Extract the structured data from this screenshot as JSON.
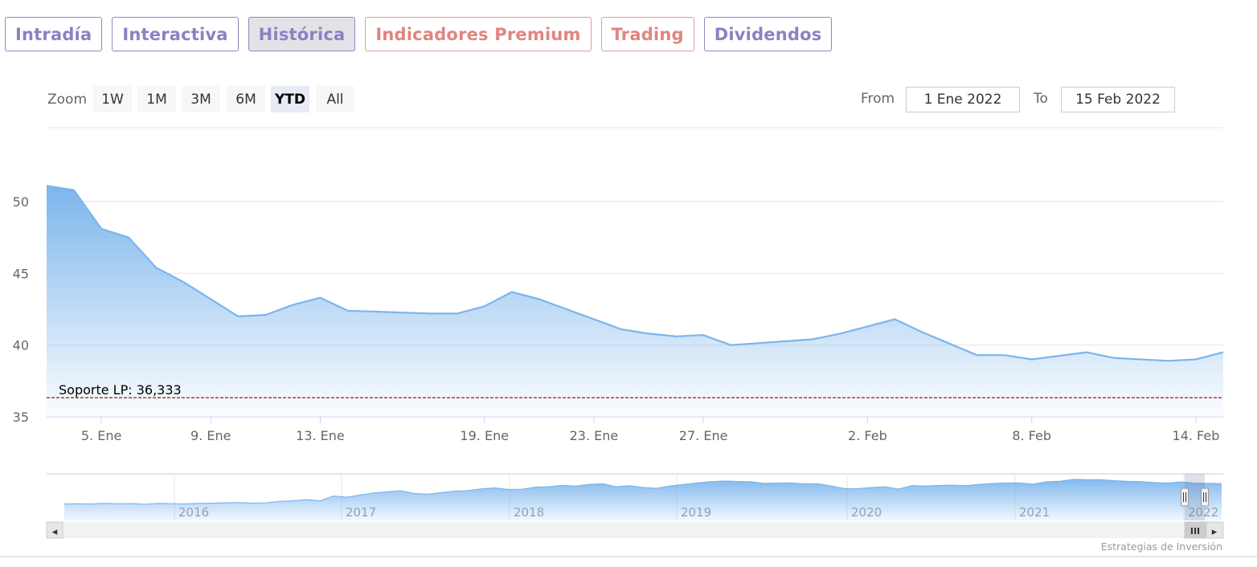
{
  "tabs": [
    {
      "label": "Intradía",
      "style": "purple",
      "active": false
    },
    {
      "label": "Interactiva",
      "style": "purple",
      "active": false
    },
    {
      "label": "Histórica",
      "style": "purple",
      "active": true
    },
    {
      "label": "Indicadores Premium",
      "style": "red",
      "active": false
    },
    {
      "label": "Trading",
      "style": "red",
      "active": false
    },
    {
      "label": "Dividendos",
      "style": "purple",
      "active": false
    }
  ],
  "toolbar": {
    "zoom_label": "Zoom",
    "zoom_buttons": [
      "1W",
      "1M",
      "3M",
      "6M",
      "YTD",
      "All"
    ],
    "zoom_selected": "YTD",
    "from_label": "From",
    "from_value": "1 Ene 2022",
    "to_label": "To",
    "to_value": "15 Feb 2022"
  },
  "colors": {
    "series_line": "#7cb5ec",
    "support_line": "#8b0000",
    "tab_purple": "#8a82c2",
    "tab_red": "#e0857f"
  },
  "chart_data": {
    "type": "area",
    "title": "",
    "xlabel": "",
    "ylabel": "",
    "ylim": [
      35,
      51.5
    ],
    "yticks": [
      35,
      40,
      45,
      50
    ],
    "x_tick_labels": [
      {
        "date": "2022-01-05",
        "label": "5. Ene"
      },
      {
        "date": "2022-01-09",
        "label": "9. Ene"
      },
      {
        "date": "2022-01-13",
        "label": "13. Ene"
      },
      {
        "date": "2022-01-19",
        "label": "19. Ene"
      },
      {
        "date": "2022-01-23",
        "label": "23. Ene"
      },
      {
        "date": "2022-01-27",
        "label": "27. Ene"
      },
      {
        "date": "2022-02-02",
        "label": "2. Feb"
      },
      {
        "date": "2022-02-08",
        "label": "8. Feb"
      },
      {
        "date": "2022-02-14",
        "label": "14. Feb"
      }
    ],
    "x": [
      "2022-01-03",
      "2022-01-04",
      "2022-01-05",
      "2022-01-06",
      "2022-01-07",
      "2022-01-08",
      "2022-01-10",
      "2022-01-11",
      "2022-01-12",
      "2022-01-13",
      "2022-01-14",
      "2022-01-17",
      "2022-01-18",
      "2022-01-19",
      "2022-01-20",
      "2022-01-21",
      "2022-01-24",
      "2022-01-25",
      "2022-01-26",
      "2022-01-27",
      "2022-01-28",
      "2022-01-31",
      "2022-02-01",
      "2022-02-03",
      "2022-02-04",
      "2022-02-06",
      "2022-02-07",
      "2022-02-08",
      "2022-02-10",
      "2022-02-11",
      "2022-02-13",
      "2022-02-14",
      "2022-02-15"
    ],
    "series": [
      {
        "values": [
          51.1,
          50.8,
          48.1,
          47.5,
          45.4,
          44.4,
          42.0,
          42.1,
          42.8,
          43.3,
          42.4,
          42.2,
          42.2,
          42.7,
          43.7,
          43.2,
          41.1,
          40.8,
          40.6,
          40.7,
          40.0,
          40.4,
          40.8,
          41.8,
          40.9,
          39.3,
          39.3,
          39.0,
          39.5,
          39.1,
          38.9,
          39.0,
          39.5
        ]
      }
    ],
    "plot_lines": [
      {
        "value": 36.333,
        "label": "Soporte LP: 36,333",
        "dash": true
      }
    ],
    "grid": true,
    "legend": "none"
  },
  "navigator": {
    "year_labels": [
      "2016",
      "2017",
      "2018",
      "2019",
      "2020",
      "2021",
      "2022"
    ],
    "series": [
      40,
      40.3,
      39.9,
      41.5,
      40.2,
      40.8,
      39.2,
      41.1,
      40.5,
      40,
      41.2,
      41.8,
      43.1,
      43.5,
      42,
      42.6,
      47,
      48.4,
      51.5,
      48.3,
      61.2,
      58,
      64.1,
      69.4,
      72.5,
      75.3,
      68,
      66.3,
      70,
      74.2,
      76,
      80.5,
      83,
      78.8,
      79.3,
      85,
      86,
      90,
      88.1,
      92.5,
      94.3,
      86,
      89,
      84.2,
      82,
      88,
      92.4,
      96.2,
      99.5,
      101.3,
      100.4,
      99.6,
      95.2,
      96,
      96.4,
      94,
      94.3,
      88.1,
      80.9,
      81.2,
      84,
      86.1,
      79.8,
      89.4,
      88,
      89.5,
      90.3,
      89.1,
      92.5,
      95,
      96.4,
      96.2,
      93.1,
      99.4,
      101,
      106.1,
      105,
      105.2,
      102.4,
      100.8,
      99.9,
      97.2,
      95.9,
      98.9,
      95.8,
      95.3,
      94.5
    ],
    "left_arrow": "◂",
    "right_arrow": "▸",
    "handle_grip": "III"
  },
  "credits": "Estrategias de Inversión"
}
